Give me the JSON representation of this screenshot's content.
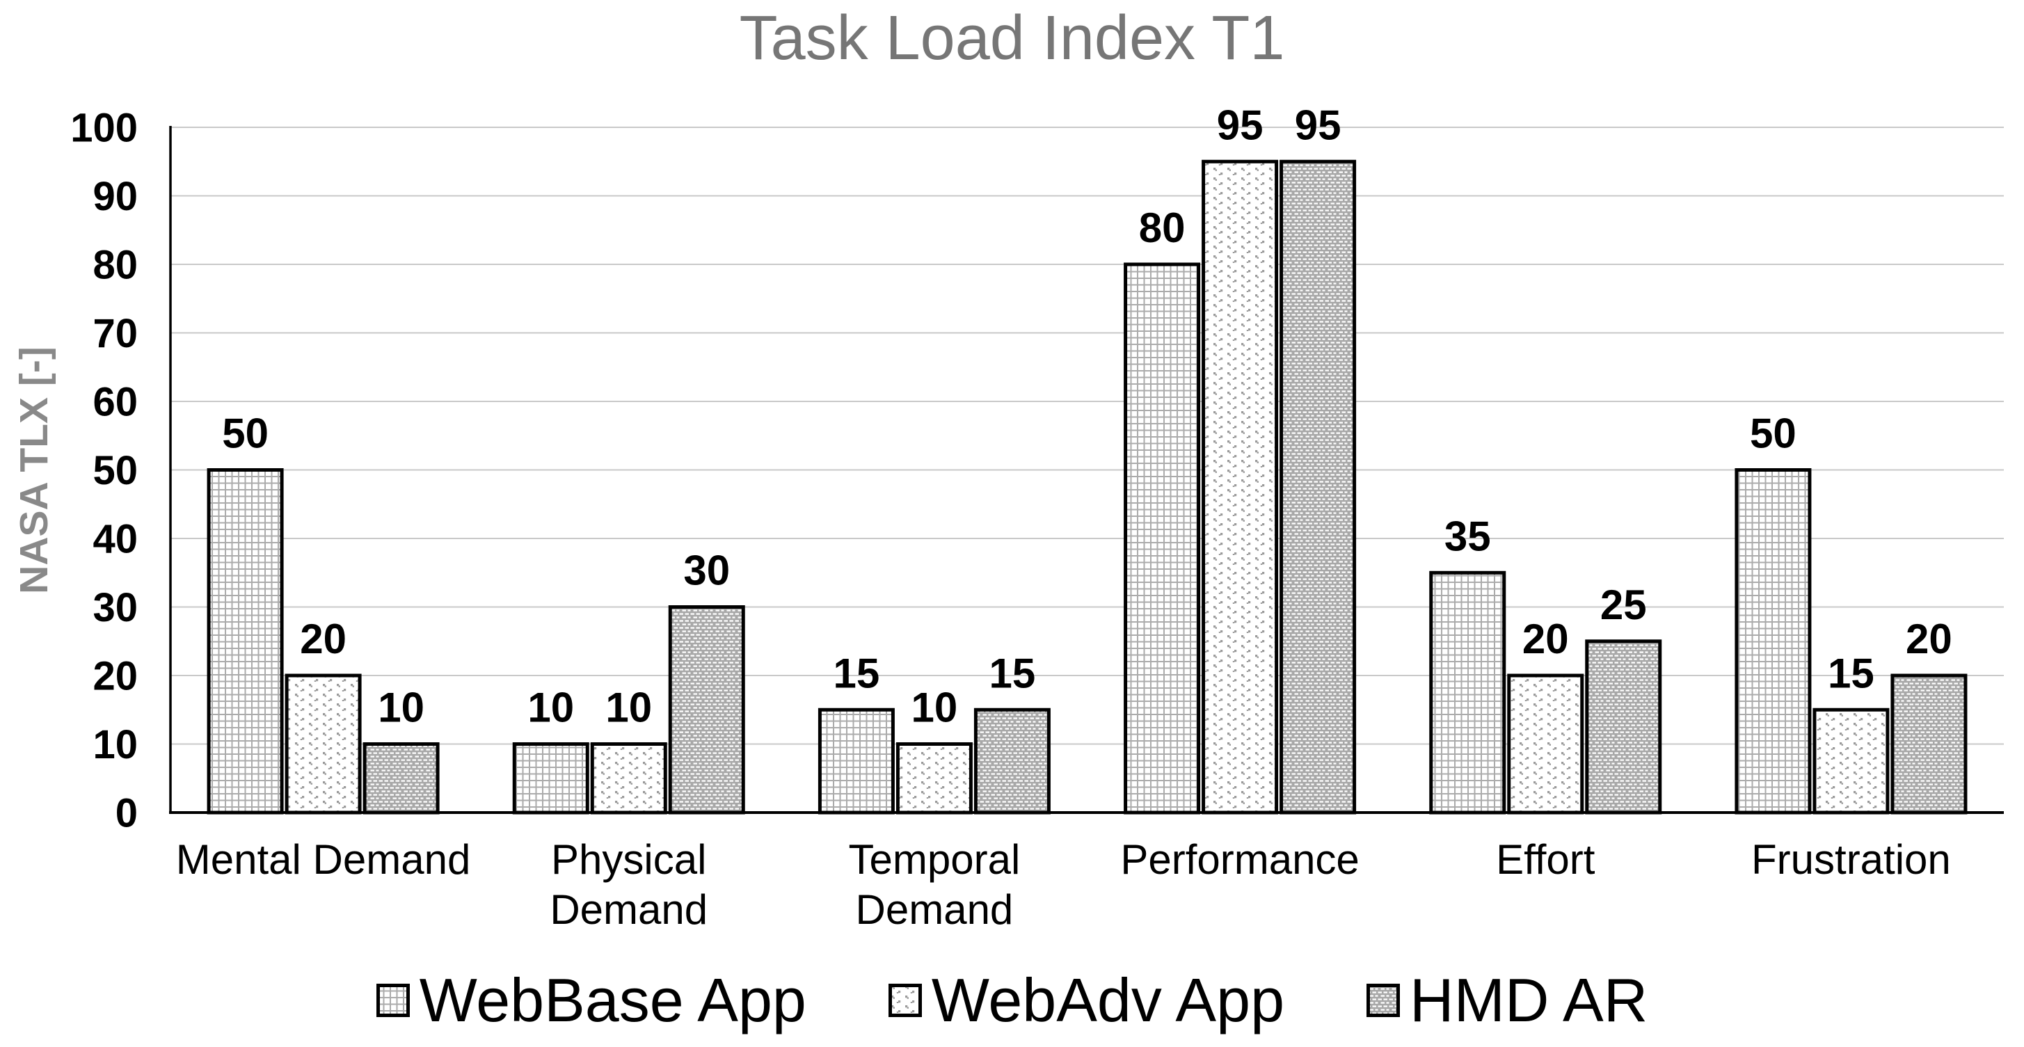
{
  "chart_data": {
    "type": "bar",
    "title": "Task Load Index T1",
    "ylabel": "NASA TLX [-]",
    "xlabel": "",
    "categories": [
      "Mental Demand",
      "Physical Demand",
      "Temporal Demand",
      "Performance",
      "Effort",
      "Frustration"
    ],
    "series": [
      {
        "name": "WebBase App",
        "pattern": "grid-pattern",
        "values": [
          50,
          10,
          15,
          80,
          35,
          50
        ]
      },
      {
        "name": "WebAdv App",
        "pattern": "dots-pattern",
        "values": [
          20,
          10,
          10,
          95,
          20,
          15
        ]
      },
      {
        "name": "HMD AR",
        "pattern": "dashes-pattern",
        "values": [
          10,
          30,
          15,
          95,
          25,
          20
        ]
      }
    ],
    "ylim": [
      0,
      100
    ],
    "yticks": [
      0,
      10,
      20,
      30,
      40,
      50,
      60,
      70,
      80,
      90,
      100
    ],
    "grid": true,
    "data_labels": true,
    "legend_position": "bottom",
    "wrap_categories": [
      "Physical Demand",
      "Temporal Demand"
    ]
  },
  "colors": {
    "title": "#767676",
    "y_axis_title": "#898989",
    "gridline": "#c9c9c9",
    "axis_line": "#000000",
    "bar_border": "#000000",
    "grid_pattern_line": "#ababab",
    "dots_pattern_dot": "#9a9a9a",
    "dashes_pattern_bg": "#a8a8a8",
    "dashes_pattern_dash": "#ffffff",
    "text": "#000000"
  }
}
